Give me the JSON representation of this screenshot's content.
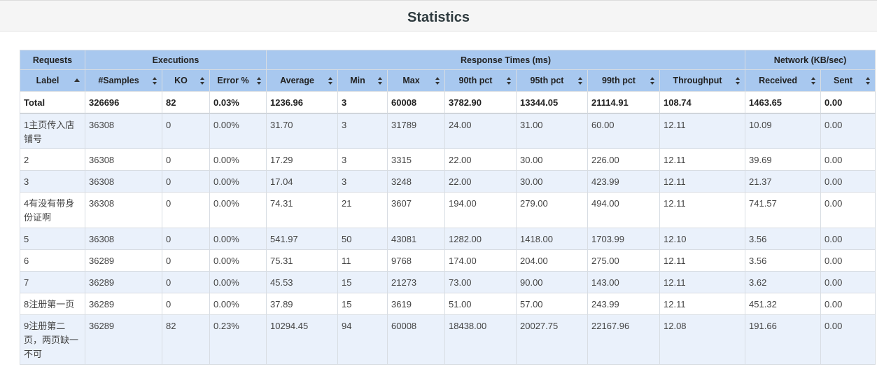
{
  "title": "Statistics",
  "group_headers": [
    "Requests",
    "Executions",
    "Response Times (ms)",
    "Network (KB/sec)"
  ],
  "columns": [
    "Label",
    "#Samples",
    "KO",
    "Error %",
    "Average",
    "Min",
    "Max",
    "90th pct",
    "95th pct",
    "99th pct",
    "Throughput",
    "Received",
    "Sent"
  ],
  "total": [
    "Total",
    "326696",
    "82",
    "0.03%",
    "1236.96",
    "3",
    "60008",
    "3782.90",
    "13344.05",
    "21114.91",
    "108.74",
    "1463.65",
    "0.00"
  ],
  "rows": [
    [
      "1主页传入店铺号",
      "36308",
      "0",
      "0.00%",
      "31.70",
      "3",
      "31789",
      "24.00",
      "31.00",
      "60.00",
      "12.11",
      "10.09",
      "0.00"
    ],
    [
      "2",
      "36308",
      "0",
      "0.00%",
      "17.29",
      "3",
      "3315",
      "22.00",
      "30.00",
      "226.00",
      "12.11",
      "39.69",
      "0.00"
    ],
    [
      "3",
      "36308",
      "0",
      "0.00%",
      "17.04",
      "3",
      "3248",
      "22.00",
      "30.00",
      "423.99",
      "12.11",
      "21.37",
      "0.00"
    ],
    [
      "4有没有带身份证啊",
      "36308",
      "0",
      "0.00%",
      "74.31",
      "21",
      "3607",
      "194.00",
      "279.00",
      "494.00",
      "12.11",
      "741.57",
      "0.00"
    ],
    [
      "5",
      "36308",
      "0",
      "0.00%",
      "541.97",
      "50",
      "43081",
      "1282.00",
      "1418.00",
      "1703.99",
      "12.10",
      "3.56",
      "0.00"
    ],
    [
      "6",
      "36289",
      "0",
      "0.00%",
      "75.31",
      "11",
      "9768",
      "174.00",
      "204.00",
      "275.00",
      "12.11",
      "3.56",
      "0.00"
    ],
    [
      "7",
      "36289",
      "0",
      "0.00%",
      "45.53",
      "15",
      "21273",
      "73.00",
      "90.00",
      "143.00",
      "12.11",
      "3.62",
      "0.00"
    ],
    [
      "8注册第一页",
      "36289",
      "0",
      "0.00%",
      "37.89",
      "15",
      "3619",
      "51.00",
      "57.00",
      "243.99",
      "12.11",
      "451.32",
      "0.00"
    ],
    [
      "9注册第二页，两页缺一不可",
      "36289",
      "82",
      "0.23%",
      "10294.45",
      "94",
      "60008",
      "18438.00",
      "20027.75",
      "22167.96",
      "12.08",
      "191.66",
      "0.00"
    ]
  ]
}
